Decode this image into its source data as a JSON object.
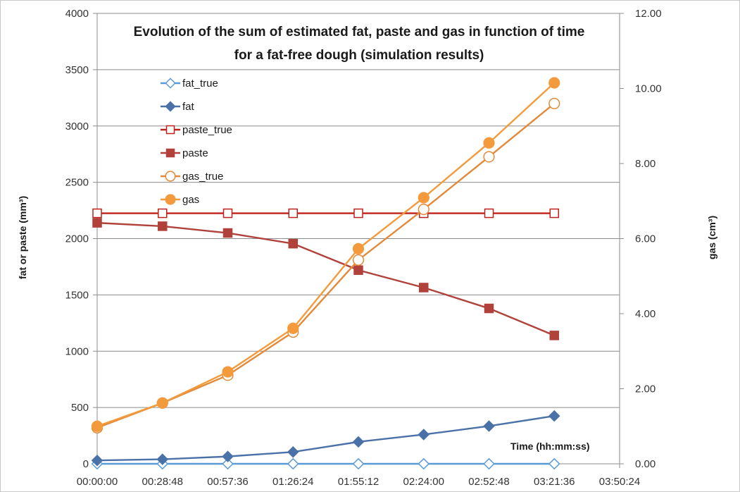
{
  "chart_data": {
    "type": "line",
    "title_lines": [
      "Evolution of the sum of estimated fat, paste and gas in function of time",
      "for a fat-free dough (simulation results)"
    ],
    "xlabel": "Time (hh:mm:ss)",
    "ylabel": "fat or paste (mm³)",
    "y2label": "gas (cm³)",
    "x_ticks": [
      "00:00:00",
      "00:28:48",
      "00:57:36",
      "01:26:24",
      "01:55:12",
      "02:24:00",
      "02:52:48",
      "03:21:36",
      "03:50:24"
    ],
    "x_minutes": [
      0,
      28.8,
      57.6,
      86.4,
      115.2,
      144,
      172.8,
      201.6,
      230.4
    ],
    "xlim": [
      0,
      230.4
    ],
    "ylim": [
      0,
      4000
    ],
    "y_ticks": [
      "0",
      "500",
      "1000",
      "1500",
      "2000",
      "2500",
      "3000",
      "3500",
      "4000"
    ],
    "y2lim": [
      0,
      12
    ],
    "y2_ticks": [
      "0.00",
      "2.00",
      "4.00",
      "6.00",
      "8.00",
      "10.00",
      "12.00"
    ],
    "grid": true,
    "legend_position": "upper-left",
    "series": [
      {
        "name": "fat_true",
        "axis": "left",
        "color": "#5b9bd5",
        "marker": "diamond",
        "filled": false,
        "x": [
          0,
          28.8,
          57.6,
          86.4,
          115.2,
          144,
          172.8,
          201.6
        ],
        "values": [
          0,
          0,
          0,
          0,
          0,
          0,
          0,
          0
        ]
      },
      {
        "name": "fat",
        "axis": "left",
        "color": "#4a72a8",
        "marker": "diamond",
        "filled": true,
        "x": [
          0,
          28.8,
          57.6,
          86.4,
          115.2,
          144,
          172.8,
          201.6
        ],
        "values": [
          30,
          40,
          65,
          105,
          195,
          260,
          335,
          425
        ]
      },
      {
        "name": "paste_true",
        "axis": "left",
        "color": "#c0201a",
        "marker": "square",
        "filled": false,
        "x": [
          0,
          28.8,
          57.6,
          86.4,
          115.2,
          144,
          172.8,
          201.6
        ],
        "values": [
          2225,
          2225,
          2225,
          2225,
          2225,
          2225,
          2225,
          2225
        ]
      },
      {
        "name": "paste",
        "axis": "left",
        "color": "#b0413b",
        "marker": "square",
        "filled": true,
        "x": [
          0,
          28.8,
          57.6,
          86.4,
          115.2,
          144,
          172.8,
          201.6
        ],
        "values": [
          2140,
          2110,
          2050,
          1955,
          1720,
          1565,
          1380,
          1140
        ]
      },
      {
        "name": "gas_true",
        "axis": "right",
        "color": "#e3893a",
        "marker": "circle",
        "filled": false,
        "x": [
          0,
          28.8,
          57.6,
          86.4,
          115.2,
          144,
          172.8,
          201.6
        ],
        "values": [
          0.96,
          1.62,
          2.36,
          3.51,
          5.43,
          6.78,
          8.18,
          9.6
        ]
      },
      {
        "name": "gas",
        "axis": "right",
        "color": "#f39a3c",
        "marker": "circle",
        "filled": true,
        "x": [
          0,
          28.8,
          57.6,
          86.4,
          115.2,
          144,
          172.8,
          201.6
        ],
        "values": [
          1.0,
          1.62,
          2.45,
          3.61,
          5.73,
          7.09,
          8.55,
          10.15
        ]
      }
    ]
  }
}
